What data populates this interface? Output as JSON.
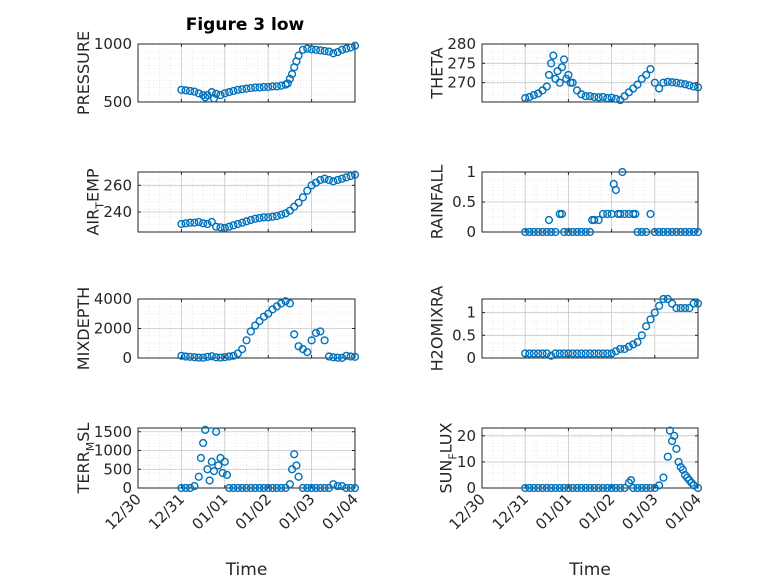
{
  "figure": {
    "title": "Figure 3 low",
    "marker_color": "#0072BD"
  },
  "chart_data": [
    {
      "type": "scatter",
      "ylabel": "PRESSURE",
      "ylim": [
        500,
        1000
      ],
      "yticks": [
        500,
        1000
      ],
      "ytick_labels": [
        "500",
        "1000"
      ],
      "xlim": [
        0,
        5
      ],
      "xticks": [
        0,
        1,
        2,
        3,
        4,
        5
      ],
      "xtick_labels": [],
      "xlabel": "",
      "grid": true,
      "minor_grid": true,
      "x": [
        1.0,
        1.1,
        1.2,
        1.3,
        1.4,
        1.5,
        1.55,
        1.6,
        1.7,
        1.75,
        1.8,
        1.9,
        2.0,
        2.1,
        2.2,
        2.3,
        2.4,
        2.5,
        2.6,
        2.7,
        2.8,
        2.9,
        3.0,
        3.1,
        3.2,
        3.3,
        3.4,
        3.45,
        3.5,
        3.55,
        3.6,
        3.65,
        3.7,
        3.8,
        3.9,
        4.0,
        4.1,
        4.2,
        4.3,
        4.4,
        4.5,
        4.6,
        4.7,
        4.8,
        4.9,
        5.0
      ],
      "y": [
        605,
        600,
        595,
        590,
        575,
        560,
        540,
        560,
        585,
        530,
        570,
        560,
        575,
        585,
        595,
        605,
        610,
        615,
        620,
        625,
        625,
        630,
        630,
        635,
        635,
        640,
        650,
        660,
        700,
        740,
        800,
        850,
        900,
        950,
        960,
        955,
        950,
        945,
        940,
        935,
        920,
        930,
        950,
        960,
        970,
        985
      ]
    },
    {
      "type": "scatter",
      "ylabel": "THETA",
      "ylim": [
        265,
        280
      ],
      "yticks": [
        270,
        275,
        280
      ],
      "ytick_labels": [
        "270",
        "275",
        "280"
      ],
      "xlim": [
        0,
        5
      ],
      "xticks": [
        0,
        1,
        2,
        3,
        4,
        5
      ],
      "xtick_labels": [],
      "xlabel": "",
      "grid": true,
      "minor_grid": true,
      "x": [
        1.0,
        1.1,
        1.2,
        1.3,
        1.4,
        1.5,
        1.55,
        1.6,
        1.65,
        1.7,
        1.75,
        1.8,
        1.85,
        1.9,
        1.95,
        2.0,
        2.05,
        2.1,
        2.2,
        2.3,
        2.4,
        2.5,
        2.6,
        2.7,
        2.8,
        2.9,
        3.0,
        3.1,
        3.2,
        3.3,
        3.4,
        3.5,
        3.6,
        3.7,
        3.8,
        3.9,
        4.0,
        4.1,
        4.2,
        4.3,
        4.4,
        4.5,
        4.6,
        4.7,
        4.8,
        4.9,
        5.0
      ],
      "y": [
        266,
        266.3,
        266.8,
        267.2,
        268,
        269,
        272,
        275,
        277,
        271,
        273,
        270,
        274,
        276,
        271,
        272,
        270,
        270,
        268,
        267,
        266.5,
        266.5,
        266.3,
        266.2,
        266.3,
        266,
        266.1,
        265.8,
        265.5,
        266.5,
        267.5,
        268.5,
        269.5,
        271,
        272,
        273.5,
        270,
        268.5,
        270,
        270.2,
        270.1,
        270,
        269.8,
        269.6,
        269.3,
        269,
        268.8
      ]
    },
    {
      "type": "scatter",
      "ylabel": "AIR",
      "ylabel_sub": "T",
      "ylabel_tail": "EMP",
      "ylim": [
        225,
        270
      ],
      "yticks": [
        240,
        260
      ],
      "ytick_labels": [
        "240",
        "260"
      ],
      "xlim": [
        0,
        5
      ],
      "xticks": [
        0,
        1,
        2,
        3,
        4,
        5
      ],
      "xtick_labels": [],
      "xlabel": "",
      "grid": true,
      "minor_grid": true,
      "x": [
        1.0,
        1.1,
        1.2,
        1.3,
        1.4,
        1.5,
        1.6,
        1.7,
        1.8,
        1.9,
        2.0,
        2.1,
        2.2,
        2.3,
        2.4,
        2.5,
        2.6,
        2.7,
        2.8,
        2.9,
        3.0,
        3.1,
        3.2,
        3.3,
        3.4,
        3.5,
        3.6,
        3.7,
        3.8,
        3.9,
        4.0,
        4.1,
        4.2,
        4.3,
        4.4,
        4.5,
        4.6,
        4.7,
        4.8,
        4.9,
        5.0
      ],
      "y": [
        231,
        231.5,
        232,
        232,
        232.5,
        231.5,
        231,
        232.5,
        229,
        228.5,
        228,
        229,
        230,
        231,
        232,
        233,
        234,
        235,
        235.5,
        236,
        236,
        236.5,
        237,
        238,
        239,
        241,
        244,
        247,
        251,
        256,
        260,
        262,
        264,
        265,
        264,
        263,
        264,
        265,
        266,
        267,
        268
      ]
    },
    {
      "type": "scatter",
      "ylabel": "RAINFALL",
      "ylim": [
        0,
        1
      ],
      "yticks": [
        0,
        0.5,
        1
      ],
      "ytick_labels": [
        "0",
        "0.5",
        "1"
      ],
      "xlim": [
        0,
        5
      ],
      "xticks": [
        0,
        1,
        2,
        3,
        4,
        5
      ],
      "xtick_labels": [],
      "xlabel": "",
      "grid": true,
      "minor_grid": true,
      "x": [
        1.0,
        1.1,
        1.2,
        1.3,
        1.4,
        1.5,
        1.55,
        1.6,
        1.7,
        1.8,
        1.85,
        1.9,
        2.0,
        2.1,
        2.2,
        2.3,
        2.4,
        2.5,
        2.55,
        2.6,
        2.7,
        2.8,
        2.9,
        3.0,
        3.05,
        3.1,
        3.15,
        3.2,
        3.25,
        3.3,
        3.4,
        3.5,
        3.55,
        3.6,
        3.7,
        3.8,
        3.9,
        4.0,
        4.1,
        4.2,
        4.3,
        4.4,
        4.5,
        4.6,
        4.7,
        4.8,
        4.9,
        5.0
      ],
      "y": [
        0,
        0,
        0,
        0,
        0,
        0,
        0.2,
        0,
        0,
        0.3,
        0.3,
        0,
        0,
        0,
        0,
        0,
        0,
        0,
        0.2,
        0.2,
        0.2,
        0.3,
        0.3,
        0.3,
        0.8,
        0.7,
        0.3,
        0.3,
        1.0,
        0.3,
        0.3,
        0.3,
        0.3,
        0,
        0,
        0,
        0.3,
        0,
        0,
        0,
        0,
        0,
        0,
        0,
        0,
        0,
        0,
        0
      ]
    },
    {
      "type": "scatter",
      "ylabel": "MIXDEPTH",
      "ylim": [
        0,
        4000
      ],
      "yticks": [
        0,
        2000,
        4000
      ],
      "ytick_labels": [
        "0",
        "2000",
        "4000"
      ],
      "xlim": [
        0,
        5
      ],
      "xticks": [
        0,
        1,
        2,
        3,
        4,
        5
      ],
      "xtick_labels": [],
      "xlabel": "",
      "grid": true,
      "minor_grid": true,
      "x": [
        1.0,
        1.1,
        1.2,
        1.3,
        1.4,
        1.5,
        1.6,
        1.7,
        1.8,
        1.9,
        2.0,
        2.1,
        2.2,
        2.3,
        2.4,
        2.5,
        2.6,
        2.7,
        2.8,
        2.9,
        3.0,
        3.1,
        3.2,
        3.3,
        3.4,
        3.5,
        3.6,
        3.7,
        3.8,
        3.9,
        4.0,
        4.1,
        4.2,
        4.3,
        4.4,
        4.5,
        4.6,
        4.7,
        4.8,
        4.9,
        5.0
      ],
      "y": [
        150,
        100,
        80,
        50,
        30,
        20,
        80,
        120,
        40,
        30,
        60,
        100,
        150,
        300,
        600,
        1200,
        1800,
        2200,
        2500,
        2800,
        3000,
        3300,
        3500,
        3700,
        3850,
        3700,
        1600,
        800,
        600,
        400,
        1200,
        1700,
        1800,
        1200,
        100,
        50,
        20,
        10,
        150,
        100,
        80
      ]
    },
    {
      "type": "scatter",
      "ylabel": "H2OMIXRA",
      "ylim": [
        0,
        1.3
      ],
      "yticks": [
        0,
        0.5,
        1
      ],
      "ytick_labels": [
        "0",
        "0.5",
        "1"
      ],
      "xlim": [
        0,
        5
      ],
      "xticks": [
        0,
        1,
        2,
        3,
        4,
        5
      ],
      "xtick_labels": [],
      "xlabel": "",
      "grid": true,
      "minor_grid": true,
      "x": [
        1.0,
        1.1,
        1.2,
        1.3,
        1.4,
        1.5,
        1.6,
        1.7,
        1.8,
        1.9,
        2.0,
        2.1,
        2.2,
        2.3,
        2.4,
        2.5,
        2.6,
        2.7,
        2.8,
        2.9,
        3.0,
        3.1,
        3.2,
        3.3,
        3.4,
        3.5,
        3.6,
        3.7,
        3.8,
        3.9,
        4.0,
        4.1,
        4.2,
        4.3,
        4.4,
        4.5,
        4.6,
        4.7,
        4.8,
        4.9,
        5.0
      ],
      "y": [
        0.1,
        0.1,
        0.1,
        0.1,
        0.1,
        0.1,
        0.05,
        0.1,
        0.1,
        0.1,
        0.1,
        0.1,
        0.1,
        0.1,
        0.1,
        0.1,
        0.1,
        0.1,
        0.1,
        0.1,
        0.1,
        0.15,
        0.2,
        0.2,
        0.25,
        0.3,
        0.35,
        0.5,
        0.7,
        0.85,
        1.0,
        1.15,
        1.3,
        1.3,
        1.2,
        1.1,
        1.1,
        1.1,
        1.1,
        1.2,
        1.2
      ]
    },
    {
      "type": "scatter",
      "ylabel": "TERR",
      "ylabel_sub": "M",
      "ylabel_tail": "SL",
      "ylim": [
        0,
        1600
      ],
      "yticks": [
        0,
        500,
        1000,
        1500
      ],
      "ytick_labels": [
        "0",
        "500",
        "1000",
        "1500"
      ],
      "xlim": [
        0,
        5
      ],
      "xticks": [
        0,
        1,
        2,
        3,
        4,
        5
      ],
      "xtick_labels": [
        "12/30",
        "12/31",
        "01/01",
        "01/02",
        "01/03",
        "01/04"
      ],
      "xlabel": "Time",
      "grid": true,
      "minor_grid": true,
      "x": [
        1.0,
        1.1,
        1.2,
        1.3,
        1.4,
        1.45,
        1.5,
        1.55,
        1.6,
        1.65,
        1.7,
        1.75,
        1.8,
        1.85,
        1.9,
        1.95,
        2.0,
        2.05,
        2.1,
        2.2,
        2.3,
        2.4,
        2.5,
        2.6,
        2.7,
        2.8,
        2.9,
        3.0,
        3.1,
        3.2,
        3.3,
        3.4,
        3.5,
        3.55,
        3.6,
        3.65,
        3.7,
        3.8,
        3.9,
        4.0,
        4.1,
        4.2,
        4.3,
        4.4,
        4.5,
        4.6,
        4.7,
        4.8,
        4.9,
        5.0
      ],
      "y": [
        0,
        0,
        0,
        50,
        300,
        800,
        1200,
        1550,
        500,
        200,
        700,
        450,
        1500,
        600,
        800,
        400,
        700,
        350,
        0,
        0,
        0,
        0,
        0,
        0,
        0,
        0,
        0,
        0,
        0,
        0,
        0,
        0,
        100,
        500,
        900,
        600,
        300,
        0,
        0,
        0,
        0,
        0,
        0,
        0,
        100,
        50,
        50,
        0,
        0,
        0
      ]
    },
    {
      "type": "scatter",
      "ylabel": "SUN",
      "ylabel_sub": "F",
      "ylabel_tail": "LUX",
      "ylim": [
        0,
        23
      ],
      "yticks": [
        0,
        10,
        20
      ],
      "ytick_labels": [
        "0",
        "10",
        "20"
      ],
      "xlim": [
        0,
        5
      ],
      "xticks": [
        0,
        1,
        2,
        3,
        4,
        5
      ],
      "xtick_labels": [
        "12/30",
        "12/31",
        "01/01",
        "01/02",
        "01/03",
        "01/04"
      ],
      "xlabel": "Time",
      "grid": true,
      "minor_grid": true,
      "x": [
        1.0,
        1.1,
        1.2,
        1.3,
        1.4,
        1.5,
        1.6,
        1.7,
        1.8,
        1.9,
        2.0,
        2.1,
        2.2,
        2.3,
        2.4,
        2.5,
        2.6,
        2.7,
        2.8,
        2.9,
        3.0,
        3.1,
        3.2,
        3.3,
        3.4,
        3.45,
        3.5,
        3.6,
        3.7,
        3.8,
        3.9,
        4.0,
        4.1,
        4.2,
        4.3,
        4.35,
        4.4,
        4.45,
        4.5,
        4.55,
        4.6,
        4.65,
        4.7,
        4.75,
        4.8,
        4.85,
        4.9,
        5.0
      ],
      "y": [
        0,
        0,
        0,
        0,
        0,
        0,
        0,
        0,
        0,
        0,
        0,
        0,
        0,
        0,
        0,
        0,
        0,
        0,
        0,
        0,
        0,
        0,
        0,
        0,
        2,
        3,
        0,
        0,
        0,
        0,
        0,
        0,
        1,
        4,
        12,
        22,
        18,
        20,
        15,
        10,
        8,
        7,
        5,
        4,
        3,
        2,
        1,
        0
      ]
    }
  ]
}
